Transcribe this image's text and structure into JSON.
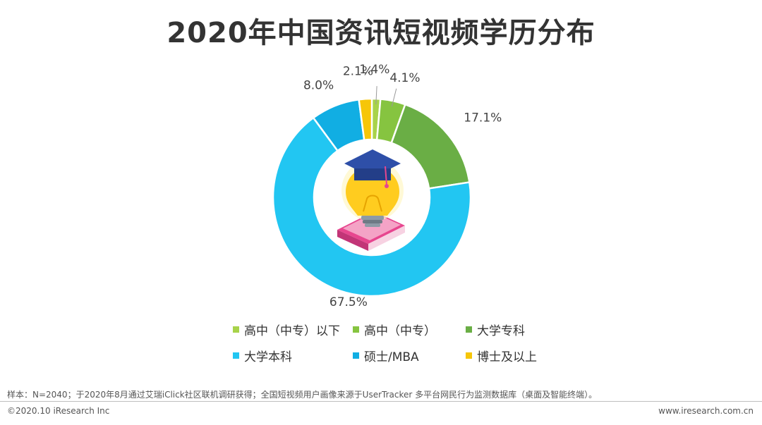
{
  "title": "2020年中国资讯短视频学历分布",
  "chart_data": {
    "type": "pie",
    "title": "2020年中国资讯短视频学历分布",
    "categories": [
      "高中（中专）以下",
      "高中（中专）",
      "大学专科",
      "大学本科",
      "硕士/MBA",
      "博士及以上"
    ],
    "values": [
      1.4,
      4.1,
      17.1,
      67.5,
      8.0,
      2.1
    ],
    "labels": [
      "1.4%",
      "4.1%",
      "17.1%",
      "67.5%",
      "8.0%",
      "2.1%"
    ],
    "colors": [
      "#a8d34a",
      "#86c440",
      "#6aae45",
      "#22c6f2",
      "#11aee3",
      "#f6c608"
    ],
    "legend_position": "bottom",
    "donut": true
  },
  "note": "样本：N=2040；于2020年8月通过艾瑞iClick社区联机调研获得；全国短视频用户画像来源于UserTracker 多平台网民行为监测数据库（桌面及智能终端）。",
  "copyright": "©2020.10 iResearch Inc",
  "website": "www.iresearch.com.cn",
  "icons": {
    "center": "graduation-cap-lightbulb-book-icon"
  }
}
